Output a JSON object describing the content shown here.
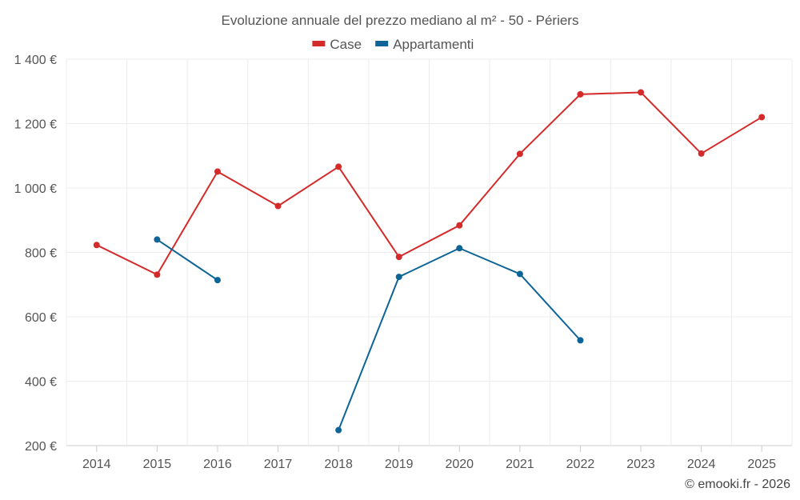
{
  "chart_data": {
    "type": "line",
    "title": "Evoluzione annuale del prezzo mediano al m² - 50 - Périers",
    "categories": [
      "2014",
      "2015",
      "2016",
      "2017",
      "2018",
      "2019",
      "2020",
      "2021",
      "2022",
      "2023",
      "2024",
      "2025"
    ],
    "series": [
      {
        "name": "Case",
        "color": "#d42a2a",
        "values": [
          823,
          731,
          1051,
          944,
          1066,
          786,
          884,
          1106,
          1291,
          1297,
          1107,
          1220
        ]
      },
      {
        "name": "Appartamenti",
        "color": "#0d6496",
        "values": [
          null,
          840,
          714,
          null,
          248,
          724,
          813,
          733,
          527,
          null,
          null,
          null
        ]
      }
    ],
    "ylim": [
      200,
      1400
    ],
    "yticks": [
      200,
      400,
      600,
      800,
      1000,
      1200,
      1400
    ],
    "ytick_labels": [
      "200 €",
      "400 €",
      "600 €",
      "800 €",
      "1 000 €",
      "1 200 €",
      "1 400 €"
    ],
    "xlabel": "",
    "ylabel": "",
    "grid": true,
    "legend_position": "top-center"
  },
  "credit": "© emooki.fr - 2026"
}
